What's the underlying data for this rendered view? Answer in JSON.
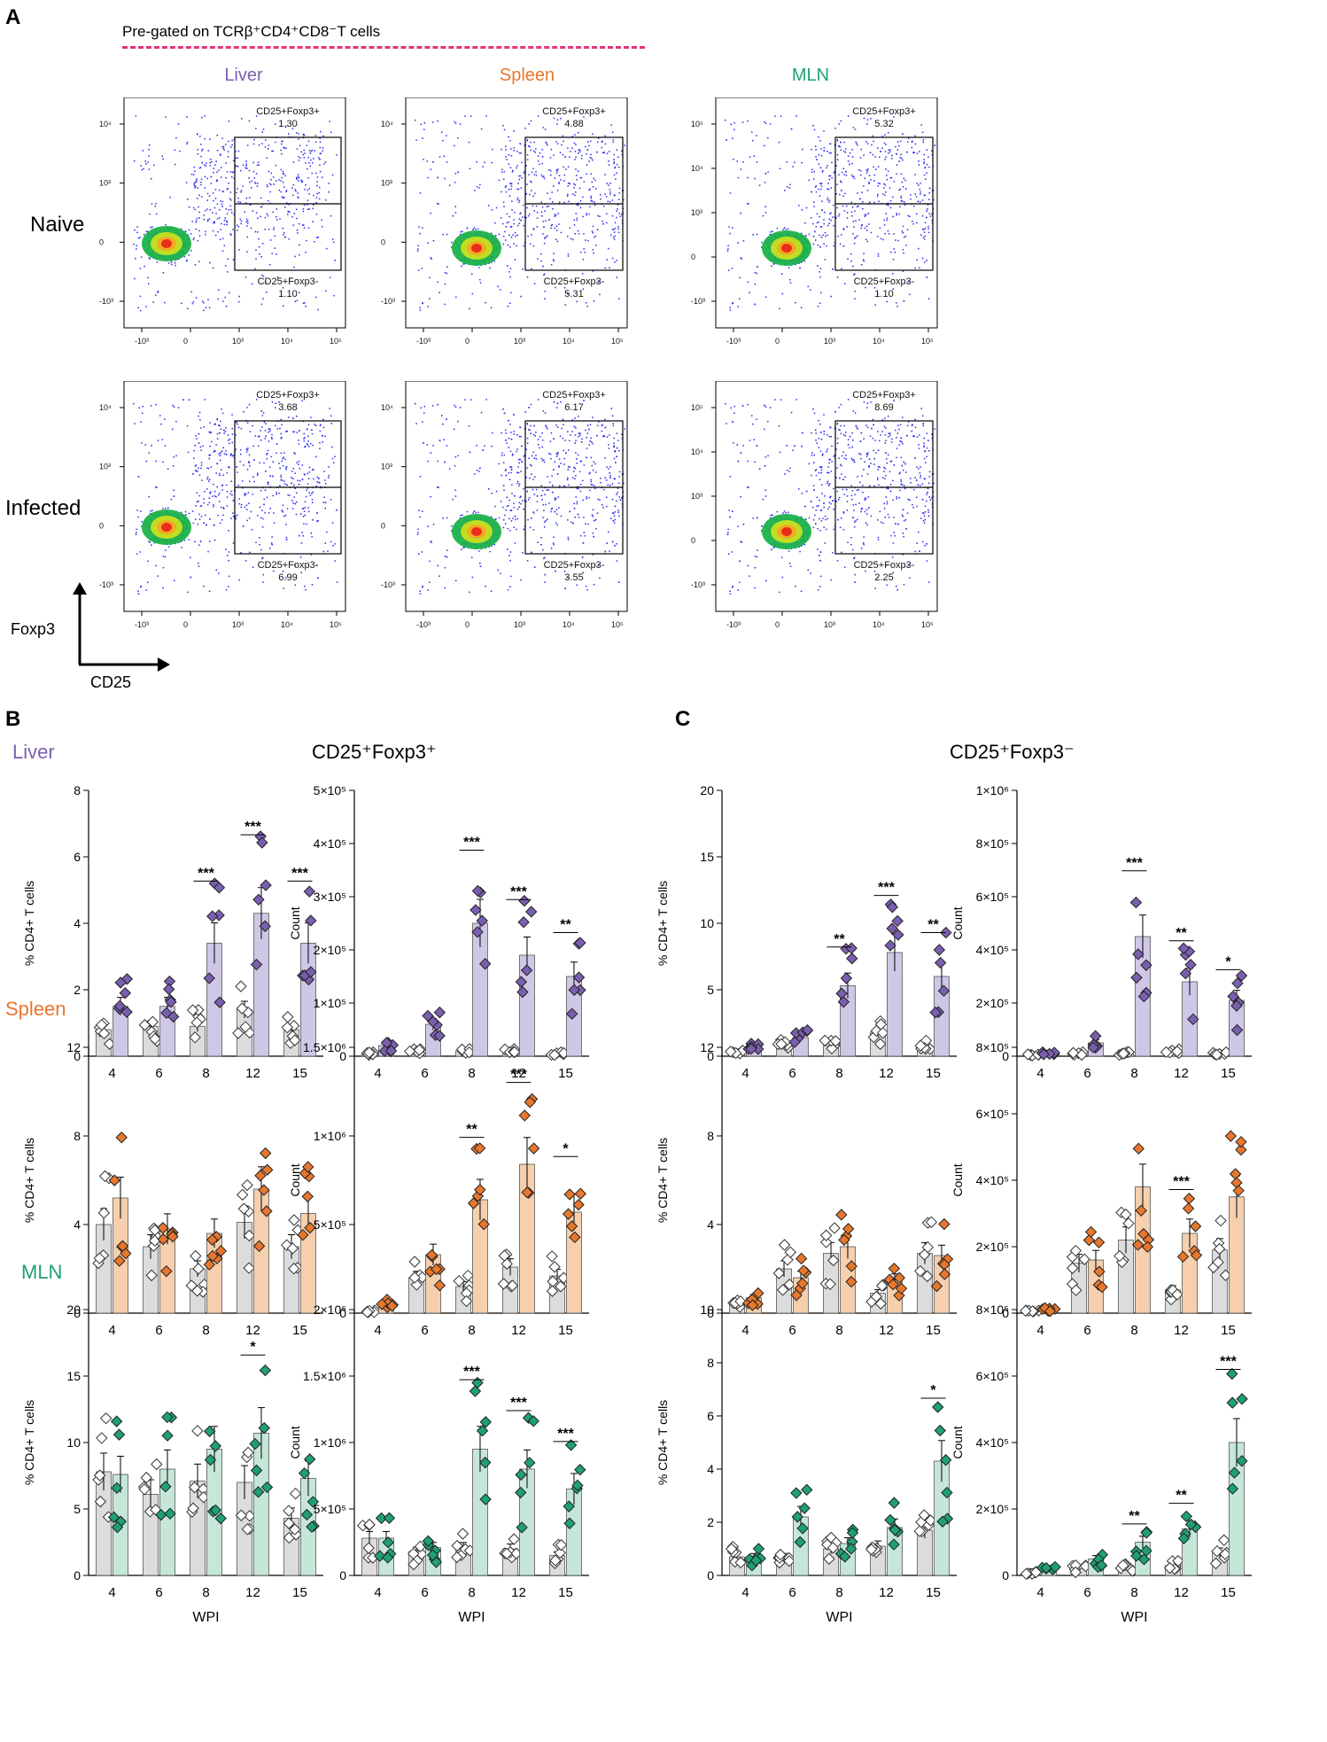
{
  "figure": {
    "panel_a": {
      "label": "A",
      "pregate_text": "Pre-gated on TCRβ⁺CD4⁺CD8⁻T cells",
      "columns": [
        {
          "name": "Liver",
          "color": "#7a5fb0"
        },
        {
          "name": "Spleen",
          "color": "#e8772e"
        },
        {
          "name": "MLN",
          "color": "#1f9f78"
        }
      ],
      "rows": [
        "Naive",
        "Infected"
      ],
      "y_axis_label": "Foxp3",
      "x_axis_label": "CD25",
      "x_ticks": [
        "-10³",
        "0",
        "10³",
        "10⁴",
        "10⁵"
      ],
      "gate_top_label": "CD25+Foxp3+",
      "gate_bottom_label": "CD25+Foxp3-",
      "plots": [
        {
          "row": "Naive",
          "col": "Liver",
          "top": "1.30",
          "bottom": "1.10",
          "y_ticks": [
            "10⁴",
            "10³",
            "0",
            "-10³"
          ]
        },
        {
          "row": "Naive",
          "col": "Spleen",
          "top": "4.88",
          "bottom": "5.31",
          "y_ticks": [
            "10⁴",
            "10³",
            "0",
            "-10³"
          ]
        },
        {
          "row": "Naive",
          "col": "MLN",
          "top": "5.32",
          "bottom": "1.10",
          "y_ticks": [
            "10⁵",
            "10⁴",
            "10³",
            "0",
            "-10³"
          ]
        },
        {
          "row": "Infected",
          "col": "Liver",
          "top": "3.68",
          "bottom": "6.99",
          "y_ticks": [
            "10⁴",
            "10³",
            "0",
            "-10³"
          ]
        },
        {
          "row": "Infected",
          "col": "Spleen",
          "top": "6.17",
          "bottom": "3.55",
          "y_ticks": [
            "10⁴",
            "10³",
            "0",
            "-10³"
          ]
        },
        {
          "row": "Infected",
          "col": "MLN",
          "top": "8.69",
          "bottom": "2.25",
          "y_ticks": [
            "10⁵",
            "10⁴",
            "10³",
            "0",
            "-10³"
          ]
        }
      ]
    },
    "panel_b": {
      "label": "B",
      "title": "CD25⁺Foxp3⁺"
    },
    "panel_c": {
      "label": "C",
      "title": "CD25⁺Foxp3⁻"
    },
    "organ_labels": [
      {
        "name": "Liver",
        "color": "#7a5fb0"
      },
      {
        "name": "Spleen",
        "color": "#e8772e"
      },
      {
        "name": "MLN",
        "color": "#1f9f78"
      }
    ],
    "x_axis_title": "WPI"
  },
  "chart_data": [
    {
      "type": "bar",
      "id": "B-liver-pct",
      "categories": [
        "4",
        "6",
        "8",
        "12",
        "15"
      ],
      "ylabel": "% CD4+ T cells",
      "xlabel": "",
      "ylim": [
        0,
        8
      ],
      "yticks": [
        "0",
        "2",
        "4",
        "6",
        "8"
      ],
      "series": [
        {
          "name": "Naive",
          "values": [
            0.8,
            0.9,
            0.9,
            1.4,
            0.8
          ]
        },
        {
          "name": "Infected",
          "values": [
            1.5,
            1.5,
            3.4,
            4.3,
            3.4
          ]
        }
      ],
      "sig": [
        "",
        "",
        "***",
        "***",
        "***"
      ],
      "color": "#7a5fb0",
      "fill": "#cfc7e6"
    },
    {
      "type": "bar",
      "id": "B-liver-count",
      "categories": [
        "4",
        "6",
        "8",
        "12",
        "15"
      ],
      "ylabel": "Count",
      "xlabel": "",
      "ylim": [
        0,
        5
      ],
      "yticks": [
        "0",
        "1×10⁵",
        "2×10⁵",
        "3×10⁵",
        "4×10⁵",
        "5×10⁵"
      ],
      "series": [
        {
          "name": "Naive",
          "values": [
            0.05,
            0.1,
            0.1,
            0.1,
            0.05
          ]
        },
        {
          "name": "Infected",
          "values": [
            0.2,
            0.6,
            2.5,
            1.9,
            1.5
          ]
        }
      ],
      "sig": [
        "",
        "",
        "***",
        "***",
        "**"
      ],
      "color": "#7a5fb0",
      "fill": "#cfc7e6"
    },
    {
      "type": "bar",
      "id": "C-liver-pct",
      "categories": [
        "4",
        "6",
        "8",
        "12",
        "15"
      ],
      "ylabel": "% CD4+ T cells",
      "xlabel": "",
      "ylim": [
        0,
        20
      ],
      "yticks": [
        "0",
        "5",
        "10",
        "15",
        "20"
      ],
      "series": [
        {
          "name": "Naive",
          "values": [
            0.3,
            0.8,
            0.8,
            1.8,
            0.8
          ]
        },
        {
          "name": "Infected",
          "values": [
            0.8,
            1.4,
            5.3,
            7.8,
            6.0
          ]
        }
      ],
      "sig": [
        "",
        "",
        "**",
        "***",
        "**"
      ],
      "color": "#7a5fb0",
      "fill": "#cfc7e6"
    },
    {
      "type": "bar",
      "id": "C-liver-count",
      "categories": [
        "4",
        "6",
        "8",
        "12",
        "15"
      ],
      "ylabel": "Count",
      "xlabel": "",
      "ylim": [
        0,
        10
      ],
      "yticks": [
        "0",
        "2×10⁵",
        "4×10⁵",
        "6×10⁵",
        "8×10⁵",
        "1×10⁶"
      ],
      "series": [
        {
          "name": "Naive",
          "values": [
            0.05,
            0.1,
            0.1,
            0.2,
            0.1
          ]
        },
        {
          "name": "Infected",
          "values": [
            0.1,
            0.5,
            4.5,
            2.8,
            2.1
          ]
        }
      ],
      "sig": [
        "",
        "",
        "***",
        "**",
        "*"
      ],
      "color": "#7a5fb0",
      "fill": "#cfc7e6"
    },
    {
      "type": "bar",
      "id": "B-spleen-pct",
      "categories": [
        "4",
        "6",
        "8",
        "12",
        "15"
      ],
      "ylabel": "% CD4+ T cells",
      "xlabel": "",
      "ylim": [
        0,
        12
      ],
      "yticks": [
        "0",
        "4",
        "8",
        "12"
      ],
      "series": [
        {
          "name": "Naive",
          "values": [
            4.0,
            3.0,
            2.0,
            4.1,
            3.0
          ]
        },
        {
          "name": "Infected",
          "values": [
            5.2,
            3.8,
            3.6,
            5.6,
            4.5
          ]
        }
      ],
      "sig": [
        "",
        "",
        "",
        "",
        ""
      ],
      "color": "#e8772e",
      "fill": "#f5cfae"
    },
    {
      "type": "bar",
      "id": "B-spleen-count",
      "categories": [
        "4",
        "6",
        "8",
        "12",
        "15"
      ],
      "ylabel": "Count",
      "xlabel": "",
      "ylim": [
        0,
        15
      ],
      "yticks": [
        "0",
        "5×10⁵",
        "1×10⁶",
        "1.5×10⁶"
      ],
      "series": [
        {
          "name": "Naive",
          "values": [
            0.1,
            2.0,
            1.5,
            2.6,
            2.1
          ]
        },
        {
          "name": "Infected",
          "values": [
            0.5,
            3.3,
            6.4,
            8.4,
            5.7
          ]
        }
      ],
      "sig": [
        "",
        "",
        "**",
        "***",
        "*"
      ],
      "color": "#e8772e",
      "fill": "#f5cfae"
    },
    {
      "type": "bar",
      "id": "C-spleen-pct",
      "categories": [
        "4",
        "6",
        "8",
        "12",
        "15"
      ],
      "ylabel": "% CD4+ T cells",
      "xlabel": "",
      "ylim": [
        0,
        12
      ],
      "yticks": [
        "0",
        "4",
        "8",
        "12"
      ],
      "series": [
        {
          "name": "Naive",
          "values": [
            0.4,
            2.0,
            2.7,
            0.9,
            2.7
          ]
        },
        {
          "name": "Infected",
          "values": [
            0.7,
            1.6,
            3.0,
            1.5,
            2.6
          ]
        }
      ],
      "sig": [
        "",
        "",
        "",
        "",
        ""
      ],
      "color": "#e8772e",
      "fill": "#f5cfae"
    },
    {
      "type": "bar",
      "id": "C-spleen-count",
      "categories": [
        "4",
        "6",
        "8",
        "12",
        "15"
      ],
      "ylabel": "Count",
      "xlabel": "",
      "ylim": [
        0,
        8
      ],
      "yticks": [
        "0",
        "2×10⁵",
        "4×10⁵",
        "6×10⁵",
        "8×10⁵"
      ],
      "series": [
        {
          "name": "Naive",
          "values": [
            0.05,
            1.5,
            2.2,
            0.7,
            1.9
          ]
        },
        {
          "name": "Infected",
          "values": [
            0.1,
            1.6,
            3.8,
            2.4,
            3.5
          ]
        }
      ],
      "sig": [
        "",
        "",
        "",
        "***",
        ""
      ],
      "color": "#e8772e",
      "fill": "#f5cfae"
    },
    {
      "type": "bar",
      "id": "B-mln-pct",
      "categories": [
        "4",
        "6",
        "8",
        "12",
        "15"
      ],
      "ylabel": "% CD4+ T cells",
      "xlabel": "WPI",
      "ylim": [
        0,
        20
      ],
      "yticks": [
        "0",
        "5",
        "10",
        "15",
        "20"
      ],
      "series": [
        {
          "name": "Naive",
          "values": [
            7.8,
            6.1,
            7.1,
            7.0,
            4.3
          ]
        },
        {
          "name": "Infected",
          "values": [
            7.6,
            8.0,
            9.5,
            10.7,
            7.3
          ]
        }
      ],
      "sig": [
        "",
        "",
        "",
        "*",
        ""
      ],
      "color": "#1f9f78",
      "fill": "#c6e6d8"
    },
    {
      "type": "bar",
      "id": "B-mln-count",
      "categories": [
        "4",
        "6",
        "8",
        "12",
        "15"
      ],
      "ylabel": "Count",
      "xlabel": "WPI",
      "ylim": [
        0,
        20
      ],
      "yticks": [
        "0",
        "5×10⁵",
        "1×10⁶",
        "1.5×10⁶",
        "2×10⁶"
      ],
      "series": [
        {
          "name": "Naive",
          "values": [
            2.8,
            1.8,
            2.1,
            2.0,
            1.5
          ]
        },
        {
          "name": "Infected",
          "values": [
            2.8,
            2.1,
            9.5,
            8.0,
            6.5
          ]
        }
      ],
      "sig": [
        "",
        "",
        "***",
        "***",
        "***"
      ],
      "color": "#1f9f78",
      "fill": "#c6e6d8"
    },
    {
      "type": "bar",
      "id": "C-mln-pct",
      "categories": [
        "4",
        "6",
        "8",
        "12",
        "15"
      ],
      "ylabel": "% CD4+ T cells",
      "xlabel": "WPI",
      "ylim": [
        0,
        10
      ],
      "yticks": [
        "0",
        "2",
        "4",
        "6",
        "8",
        "10"
      ],
      "series": [
        {
          "name": "Naive",
          "values": [
            0.7,
            0.7,
            1.0,
            1.1,
            1.7
          ]
        },
        {
          "name": "Infected",
          "values": [
            0.7,
            2.2,
            1.2,
            1.8,
            4.3
          ]
        }
      ],
      "sig": [
        "",
        "",
        "",
        "",
        "*"
      ],
      "color": "#1f9f78",
      "fill": "#c6e6d8"
    },
    {
      "type": "bar",
      "id": "C-mln-count",
      "categories": [
        "4",
        "6",
        "8",
        "12",
        "15"
      ],
      "ylabel": "Count",
      "xlabel": "WPI",
      "ylim": [
        0,
        8
      ],
      "yticks": [
        "0",
        "2×10⁵",
        "4×10⁵",
        "6×10⁵",
        "8×10⁵"
      ],
      "series": [
        {
          "name": "Naive",
          "values": [
            0.1,
            0.2,
            0.3,
            0.3,
            0.7
          ]
        },
        {
          "name": "Infected",
          "values": [
            0.2,
            0.5,
            1.0,
            1.4,
            4.0
          ]
        }
      ],
      "sig": [
        "",
        "",
        "**",
        "**",
        "***"
      ],
      "color": "#1f9f78",
      "fill": "#c6e6d8"
    }
  ]
}
